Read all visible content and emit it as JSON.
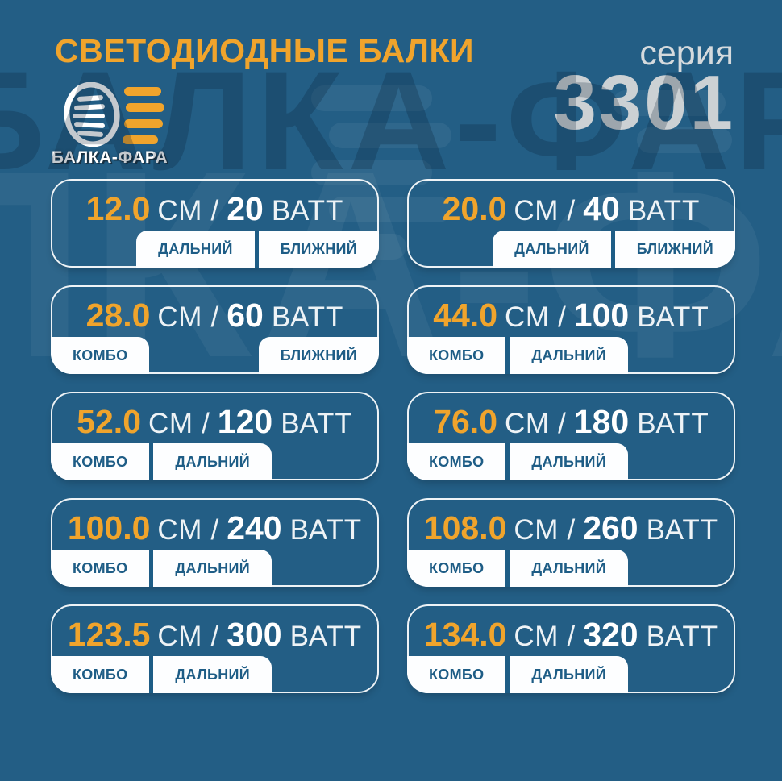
{
  "page": {
    "background": "#235e85"
  },
  "watermark": {
    "text": "БАЛКА-ФАРА"
  },
  "header": {
    "title": "СВЕТОДИОДНЫЕ БАЛКИ",
    "series_label": "серия",
    "series_number": "3301",
    "brand_name": "БАЛКА-ФАРА",
    "logo_icon": "headlight-with-beams-icon"
  },
  "units": {
    "length": "СМ",
    "separator": "/",
    "power": "ВАТТ"
  },
  "colors": {
    "background_blue": "#235e85",
    "accent_orange": "#f0a42c",
    "tab_text_blue": "#1e5d86",
    "card_border_white": "#eef3f6",
    "series_gray": "#ccd1d4"
  },
  "cards": [
    {
      "length_cm": "12.0",
      "watts": "20",
      "tags": [
        {
          "label": "ДАЛЬНИЙ",
          "side": "right"
        },
        {
          "label": "БЛИЖНИЙ",
          "side": "right"
        }
      ]
    },
    {
      "length_cm": "20.0",
      "watts": "40",
      "tags": [
        {
          "label": "ДАЛЬНИЙ",
          "side": "right"
        },
        {
          "label": "БЛИЖНИЙ",
          "side": "right"
        }
      ]
    },
    {
      "length_cm": "28.0",
      "watts": "60",
      "tags": [
        {
          "label": "КОМБО",
          "side": "left"
        },
        {
          "label": "БЛИЖНИЙ",
          "side": "right"
        }
      ]
    },
    {
      "length_cm": "44.0",
      "watts": "100",
      "tags": [
        {
          "label": "КОМБО",
          "side": "left"
        },
        {
          "label": "ДАЛЬНИЙ",
          "side": "left"
        }
      ]
    },
    {
      "length_cm": "52.0",
      "watts": "120",
      "tags": [
        {
          "label": "КОМБО",
          "side": "left"
        },
        {
          "label": "ДАЛЬНИЙ",
          "side": "left"
        }
      ]
    },
    {
      "length_cm": "76.0",
      "watts": "180",
      "tags": [
        {
          "label": "КОМБО",
          "side": "left"
        },
        {
          "label": "ДАЛЬНИЙ",
          "side": "left"
        }
      ]
    },
    {
      "length_cm": "100.0",
      "watts": "240",
      "tags": [
        {
          "label": "КОМБО",
          "side": "left"
        },
        {
          "label": "ДАЛЬНИЙ",
          "side": "left"
        }
      ]
    },
    {
      "length_cm": "108.0",
      "watts": "260",
      "tags": [
        {
          "label": "КОМБО",
          "side": "left"
        },
        {
          "label": "ДАЛЬНИЙ",
          "side": "left"
        }
      ]
    },
    {
      "length_cm": "123.5",
      "watts": "300",
      "tags": [
        {
          "label": "КОМБО",
          "side": "left"
        },
        {
          "label": "ДАЛЬНИЙ",
          "side": "left"
        }
      ]
    },
    {
      "length_cm": "134.0",
      "watts": "320",
      "tags": [
        {
          "label": "КОМБО",
          "side": "left"
        },
        {
          "label": "ДАЛЬНИЙ",
          "side": "left"
        }
      ]
    }
  ]
}
